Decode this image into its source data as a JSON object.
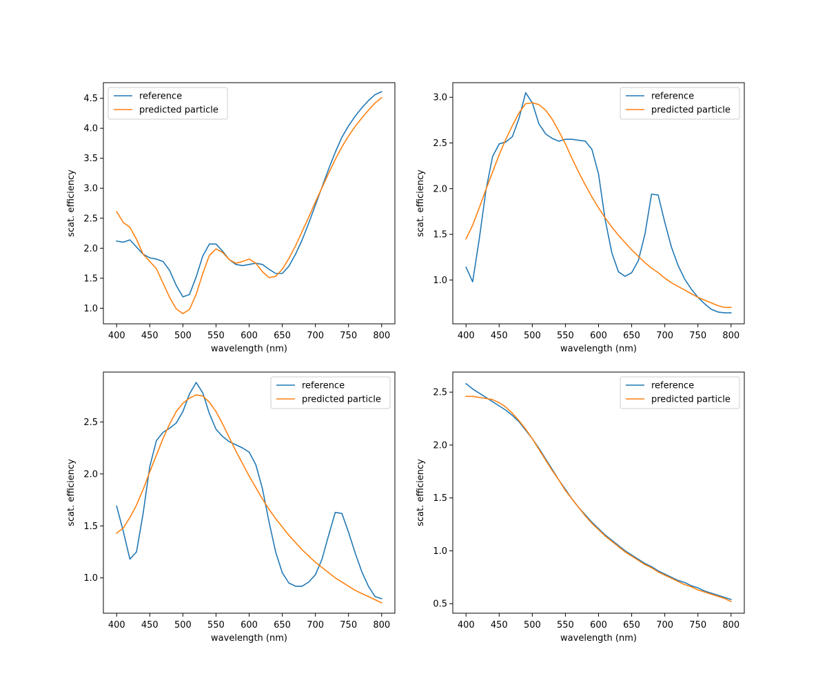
{
  "chart_data": [
    {
      "type": "line",
      "xlabel": "wavelength (nm)",
      "ylabel": "scat. efficiency",
      "xlim": [
        380,
        820
      ],
      "ylim": [
        0.74,
        4.76
      ],
      "xticks": [
        400,
        450,
        500,
        550,
        600,
        650,
        700,
        750,
        800
      ],
      "yticks": [
        1.0,
        1.5,
        2.0,
        2.5,
        3.0,
        3.5,
        4.0,
        4.5
      ],
      "legend_loc": "upper-left",
      "series": [
        {
          "name": "reference",
          "color": "#1f77b4",
          "x": [
            400,
            410,
            420,
            430,
            440,
            450,
            460,
            470,
            480,
            490,
            500,
            510,
            520,
            530,
            540,
            550,
            560,
            570,
            580,
            590,
            600,
            610,
            620,
            630,
            640,
            650,
            660,
            670,
            680,
            690,
            700,
            710,
            720,
            730,
            740,
            750,
            760,
            770,
            780,
            790,
            800
          ],
          "y": [
            2.12,
            2.1,
            2.14,
            2.02,
            1.9,
            1.84,
            1.82,
            1.78,
            1.63,
            1.38,
            1.19,
            1.23,
            1.52,
            1.87,
            2.07,
            2.07,
            1.95,
            1.81,
            1.73,
            1.71,
            1.73,
            1.75,
            1.73,
            1.65,
            1.58,
            1.58,
            1.7,
            1.9,
            2.14,
            2.42,
            2.72,
            3.02,
            3.32,
            3.6,
            3.85,
            4.04,
            4.2,
            4.34,
            4.46,
            4.56,
            4.61
          ]
        },
        {
          "name": "predicted particle",
          "color": "#ff7f0e",
          "x": [
            400,
            410,
            420,
            430,
            440,
            450,
            460,
            470,
            480,
            490,
            500,
            510,
            520,
            530,
            540,
            550,
            560,
            570,
            580,
            590,
            600,
            610,
            620,
            630,
            640,
            650,
            660,
            670,
            680,
            690,
            700,
            710,
            720,
            730,
            740,
            750,
            760,
            770,
            780,
            790,
            800
          ],
          "y": [
            2.61,
            2.43,
            2.35,
            2.15,
            1.9,
            1.78,
            1.66,
            1.42,
            1.18,
            0.99,
            0.91,
            0.98,
            1.23,
            1.58,
            1.88,
            1.99,
            1.93,
            1.81,
            1.75,
            1.78,
            1.82,
            1.75,
            1.61,
            1.51,
            1.53,
            1.65,
            1.83,
            2.04,
            2.28,
            2.52,
            2.77,
            3.01,
            3.25,
            3.48,
            3.69,
            3.87,
            4.03,
            4.17,
            4.3,
            4.42,
            4.51
          ]
        }
      ]
    },
    {
      "type": "line",
      "xlabel": "wavelength (nm)",
      "ylabel": "scat. efficiency",
      "xlim": [
        380,
        820
      ],
      "ylim": [
        0.52,
        3.16
      ],
      "xticks": [
        400,
        450,
        500,
        550,
        600,
        650,
        700,
        750,
        800
      ],
      "yticks": [
        1.0,
        1.5,
        2.0,
        2.5,
        3.0
      ],
      "legend_loc": "upper-right",
      "series": [
        {
          "name": "reference",
          "color": "#1f77b4",
          "x": [
            400,
            410,
            420,
            430,
            440,
            450,
            460,
            470,
            480,
            490,
            500,
            510,
            520,
            530,
            540,
            550,
            560,
            570,
            580,
            590,
            600,
            610,
            620,
            630,
            640,
            650,
            660,
            670,
            680,
            690,
            700,
            710,
            720,
            730,
            740,
            750,
            760,
            770,
            780,
            790,
            800
          ],
          "y": [
            1.14,
            0.98,
            1.45,
            1.98,
            2.35,
            2.49,
            2.51,
            2.57,
            2.77,
            3.05,
            2.94,
            2.71,
            2.6,
            2.55,
            2.52,
            2.54,
            2.54,
            2.53,
            2.52,
            2.43,
            2.16,
            1.66,
            1.3,
            1.09,
            1.04,
            1.08,
            1.21,
            1.5,
            1.94,
            1.93,
            1.63,
            1.36,
            1.16,
            1.01,
            0.9,
            0.81,
            0.74,
            0.68,
            0.65,
            0.64,
            0.64
          ]
        },
        {
          "name": "predicted particle",
          "color": "#ff7f0e",
          "x": [
            400,
            410,
            420,
            430,
            440,
            450,
            460,
            470,
            480,
            490,
            500,
            510,
            520,
            530,
            540,
            550,
            560,
            570,
            580,
            590,
            600,
            610,
            620,
            630,
            640,
            650,
            660,
            670,
            680,
            690,
            700,
            710,
            720,
            730,
            740,
            750,
            760,
            770,
            780,
            790,
            800
          ],
          "y": [
            1.45,
            1.6,
            1.79,
            1.99,
            2.18,
            2.37,
            2.54,
            2.69,
            2.83,
            2.93,
            2.94,
            2.92,
            2.86,
            2.76,
            2.63,
            2.49,
            2.33,
            2.18,
            2.04,
            1.91,
            1.79,
            1.68,
            1.58,
            1.49,
            1.41,
            1.33,
            1.26,
            1.19,
            1.13,
            1.08,
            1.02,
            0.97,
            0.93,
            0.89,
            0.85,
            0.81,
            0.78,
            0.75,
            0.72,
            0.7,
            0.7
          ]
        }
      ]
    },
    {
      "type": "line",
      "xlabel": "wavelength (nm)",
      "ylabel": "scat. efficiency",
      "xlim": [
        380,
        820
      ],
      "ylim": [
        0.66,
        2.98
      ],
      "xticks": [
        400,
        450,
        500,
        550,
        600,
        650,
        700,
        750,
        800
      ],
      "yticks": [
        1.0,
        1.5,
        2.0,
        2.5
      ],
      "legend_loc": "upper-right",
      "series": [
        {
          "name": "reference",
          "color": "#1f77b4",
          "x": [
            400,
            410,
            420,
            430,
            440,
            450,
            460,
            470,
            480,
            490,
            500,
            510,
            520,
            530,
            540,
            550,
            560,
            570,
            580,
            590,
            600,
            610,
            620,
            630,
            640,
            650,
            660,
            670,
            680,
            690,
            700,
            710,
            720,
            730,
            740,
            750,
            760,
            770,
            780,
            790,
            800
          ],
          "y": [
            1.69,
            1.45,
            1.18,
            1.25,
            1.62,
            2.07,
            2.32,
            2.4,
            2.44,
            2.49,
            2.6,
            2.77,
            2.88,
            2.78,
            2.58,
            2.43,
            2.36,
            2.31,
            2.28,
            2.25,
            2.21,
            2.09,
            1.86,
            1.54,
            1.25,
            1.05,
            0.95,
            0.92,
            0.92,
            0.96,
            1.03,
            1.18,
            1.41,
            1.63,
            1.62,
            1.44,
            1.24,
            1.06,
            0.92,
            0.82,
            0.8
          ]
        },
        {
          "name": "predicted particle",
          "color": "#ff7f0e",
          "x": [
            400,
            410,
            420,
            430,
            440,
            450,
            460,
            470,
            480,
            490,
            500,
            510,
            520,
            530,
            540,
            550,
            560,
            570,
            580,
            590,
            600,
            610,
            620,
            630,
            640,
            650,
            660,
            670,
            680,
            690,
            700,
            710,
            720,
            730,
            740,
            750,
            760,
            770,
            780,
            790,
            800
          ],
          "y": [
            1.43,
            1.48,
            1.58,
            1.7,
            1.85,
            2.02,
            2.18,
            2.34,
            2.48,
            2.6,
            2.68,
            2.73,
            2.76,
            2.75,
            2.69,
            2.6,
            2.48,
            2.35,
            2.22,
            2.1,
            1.98,
            1.87,
            1.76,
            1.66,
            1.57,
            1.49,
            1.41,
            1.34,
            1.27,
            1.21,
            1.15,
            1.1,
            1.05,
            1.0,
            0.96,
            0.92,
            0.88,
            0.85,
            0.82,
            0.79,
            0.76
          ]
        }
      ]
    },
    {
      "type": "line",
      "xlabel": "wavelength (nm)",
      "ylabel": "scat. efficiency",
      "xlim": [
        380,
        820
      ],
      "ylim": [
        0.41,
        2.69
      ],
      "xticks": [
        400,
        450,
        500,
        550,
        600,
        650,
        700,
        750,
        800
      ],
      "yticks": [
        0.5,
        1.0,
        1.5,
        2.0,
        2.5
      ],
      "legend_loc": "upper-right",
      "series": [
        {
          "name": "reference",
          "color": "#1f77b4",
          "x": [
            400,
            410,
            420,
            430,
            440,
            450,
            460,
            470,
            480,
            490,
            500,
            510,
            520,
            530,
            540,
            550,
            560,
            570,
            580,
            590,
            600,
            610,
            620,
            630,
            640,
            650,
            660,
            670,
            680,
            690,
            700,
            710,
            720,
            730,
            740,
            750,
            760,
            770,
            780,
            790,
            800
          ],
          "y": [
            2.58,
            2.53,
            2.49,
            2.45,
            2.41,
            2.37,
            2.33,
            2.28,
            2.22,
            2.14,
            2.06,
            1.97,
            1.87,
            1.77,
            1.67,
            1.58,
            1.49,
            1.41,
            1.34,
            1.27,
            1.21,
            1.15,
            1.1,
            1.05,
            1.0,
            0.96,
            0.92,
            0.88,
            0.85,
            0.81,
            0.78,
            0.75,
            0.72,
            0.7,
            0.67,
            0.65,
            0.62,
            0.6,
            0.58,
            0.56,
            0.54
          ]
        },
        {
          "name": "predicted particle",
          "color": "#ff7f0e",
          "x": [
            400,
            410,
            420,
            430,
            440,
            450,
            460,
            470,
            480,
            490,
            500,
            510,
            520,
            530,
            540,
            550,
            560,
            570,
            580,
            590,
            600,
            610,
            620,
            630,
            640,
            650,
            660,
            670,
            680,
            690,
            700,
            710,
            720,
            730,
            740,
            750,
            760,
            770,
            780,
            790,
            800
          ],
          "y": [
            2.46,
            2.46,
            2.45,
            2.44,
            2.43,
            2.4,
            2.36,
            2.3,
            2.23,
            2.15,
            2.06,
            1.96,
            1.86,
            1.76,
            1.67,
            1.57,
            1.49,
            1.41,
            1.33,
            1.26,
            1.2,
            1.14,
            1.09,
            1.04,
            0.99,
            0.95,
            0.91,
            0.87,
            0.84,
            0.8,
            0.77,
            0.74,
            0.71,
            0.68,
            0.66,
            0.63,
            0.61,
            0.59,
            0.57,
            0.55,
            0.52
          ]
        }
      ]
    }
  ]
}
